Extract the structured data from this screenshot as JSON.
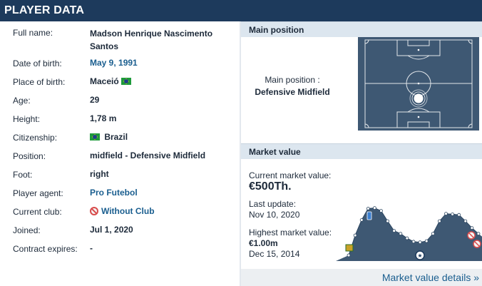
{
  "header": {
    "title": "PLAYER DATA"
  },
  "player": {
    "fields": [
      {
        "label": "Full name:",
        "value": "Madson Henrique Nascimento Santos"
      },
      {
        "label": "Date of birth:",
        "value": "May 9, 1991"
      },
      {
        "label": "Place of birth:",
        "value": "Maceió"
      },
      {
        "label": "Age:",
        "value": "29"
      },
      {
        "label": "Height:",
        "value": "1,78 m"
      },
      {
        "label": "Citizenship:",
        "value": "Brazil"
      },
      {
        "label": "Position:",
        "value": "midfield - Defensive Midfield"
      },
      {
        "label": "Foot:",
        "value": "right"
      },
      {
        "label": "Player agent:",
        "value": "Pro Futebol"
      },
      {
        "label": "Current club:",
        "value": "Without Club"
      },
      {
        "label": "Joined:",
        "value": "Jul 1, 2020"
      },
      {
        "label": "Contract expires:",
        "value": "-"
      }
    ]
  },
  "main_position": {
    "title": "Main position",
    "label": "Main position :",
    "value": "Defensive Midfield"
  },
  "market_value": {
    "title": "Market value",
    "current_label": "Current market value:",
    "current_value": "€500Th.",
    "last_update_label": "Last update:",
    "last_update": "Nov 10, 2020",
    "highest_label": "Highest market value:",
    "highest_value": "€1.00m",
    "highest_date": "Dec 15, 2014",
    "details_link": "Market value details »"
  },
  "colors": {
    "header_bg": "#1d3a5c",
    "link": "#1a5e8f",
    "pitch": "#3e5873",
    "chart_fill": "#3e5873"
  },
  "chart_data": {
    "type": "area",
    "series_values": [
      0.1,
      0.45,
      0.72,
      0.92,
      0.93,
      0.88,
      0.7,
      0.53,
      0.48,
      0.4,
      0.34,
      0.33,
      0.35,
      0.48,
      0.7,
      0.83,
      0.82,
      0.81,
      0.7,
      0.58,
      0.48
    ]
  }
}
